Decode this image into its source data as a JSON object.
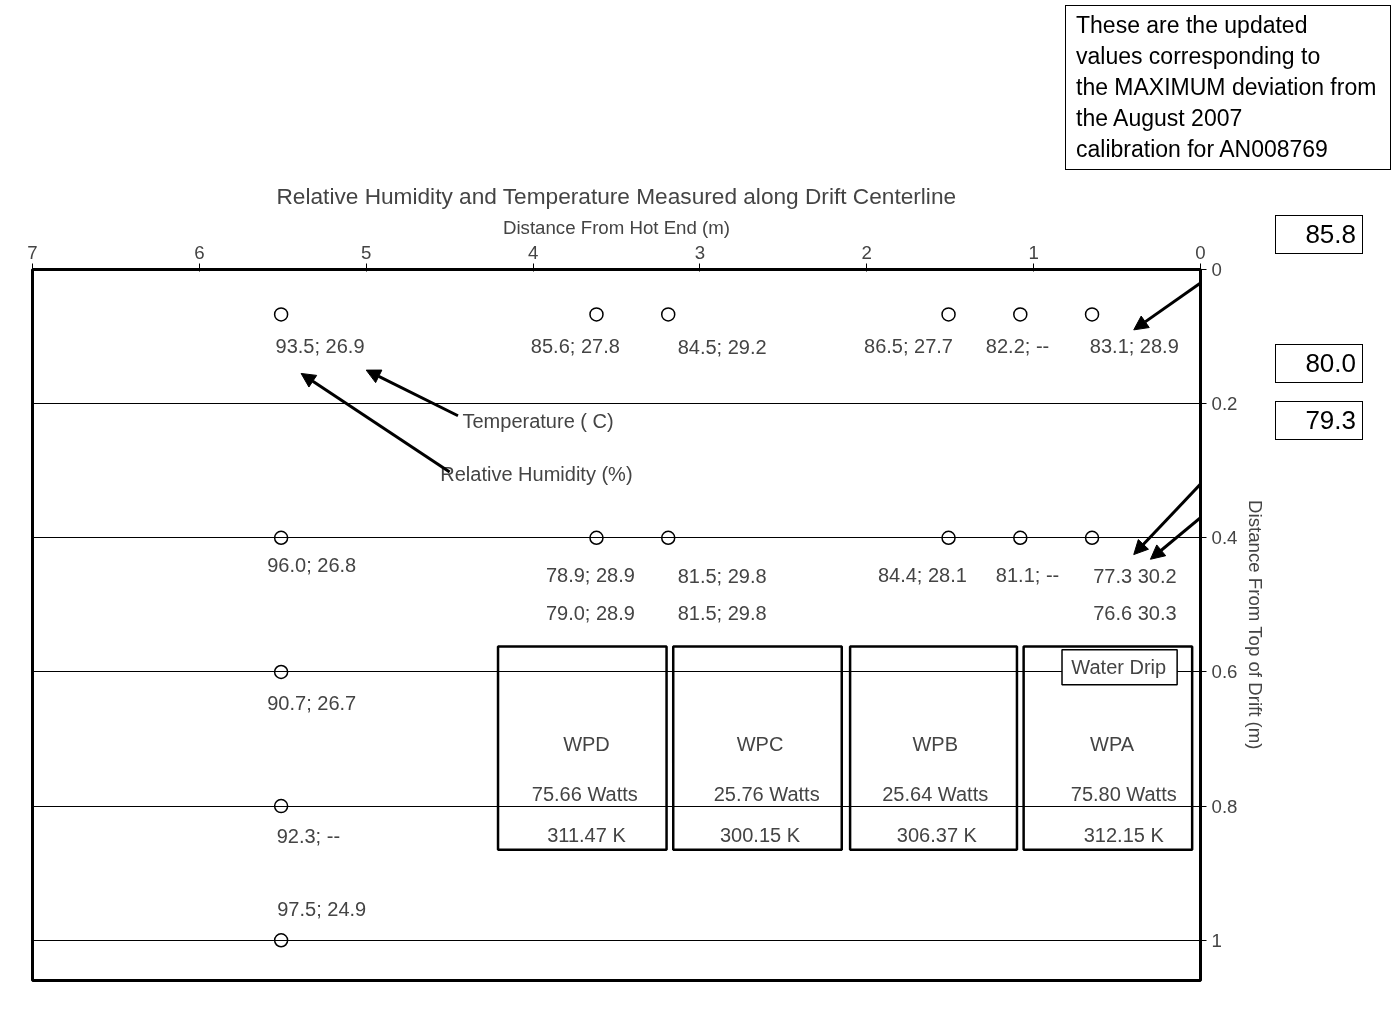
{
  "chart_data": {
    "type": "scatter",
    "title": "Relative Humidity and Temperature Measured along Drift Centerline",
    "xlabel": "Distance From Hot End (m)",
    "ylabel": "Distance From Top of Drift (m)",
    "xlim": [
      7,
      0
    ],
    "ylim": [
      1.06,
      0
    ],
    "xticks": [
      0,
      1,
      2,
      3,
      4,
      5,
      6,
      7
    ],
    "yticks": [
      0,
      0.2,
      0.4,
      0.6,
      0.8,
      1
    ],
    "grid": "y",
    "marker": "circle",
    "series": [
      {
        "color": "#000000",
        "x": [
          5.51,
          3.62,
          3.19,
          1.51,
          1.08,
          0.65,
          5.51,
          3.62,
          3.19,
          1.51,
          1.08,
          0.65,
          5.51,
          5.51,
          5.51
        ],
        "values": [
          0.067,
          0.067,
          0.067,
          0.067,
          0.067,
          0.067,
          0.4,
          0.4,
          0.4,
          0.4,
          0.4,
          0.4,
          0.6,
          0.8,
          1.0
        ]
      }
    ],
    "annotations": [
      "These are the updated values corresponding to the MAXIMUM deviation from the August 2007 calibration  for AN008769",
      "85.8",
      "80.0",
      "79.3",
      "93.5;  26.9",
      "85.6;  27.8",
      "84.5;  29.2",
      "86.5; 27.7",
      "82.2;  --",
      "83.1;  28.9",
      "Temperature ( C)",
      "Relative Humidity (%)",
      "96.0;  26.8",
      "78.9;  28.9",
      "81.5;  29.8",
      "84.4;  28.1",
      "81.1;  --",
      "77.3   30.2",
      "79.0;  28.9",
      "81.5;  29.8",
      "76.6   30.3",
      "Water Drip",
      "90.7;  26.7",
      "WPD",
      "WPC",
      "WPB",
      "WPA",
      "75.66 Watts",
      "25.76 Watts",
      "25.64 Watts",
      "75.80 Watts",
      "311.47 K",
      "300.15 K",
      "306.37 K",
      "312.15 K",
      "92.3;  --",
      "97.5;  24.9"
    ]
  }
}
